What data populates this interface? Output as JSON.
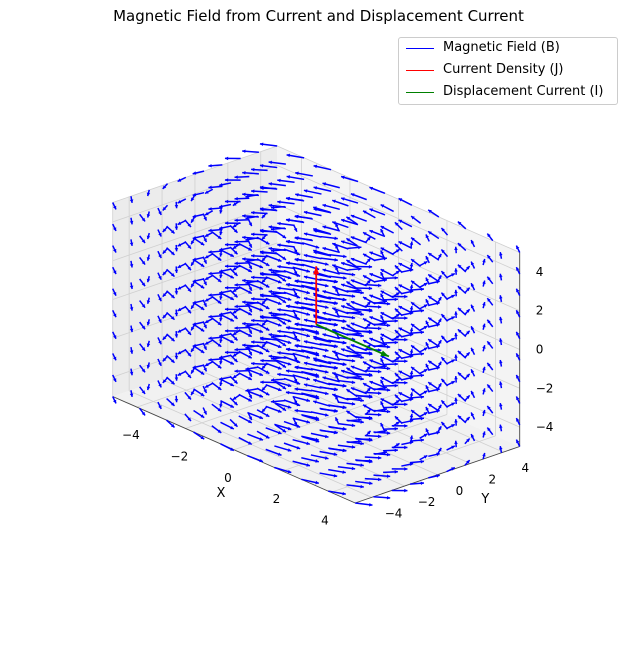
{
  "chart_data": {
    "type": "quiver3d",
    "title": "Magnetic Field from Current and Displacement Current",
    "xlabel": "X",
    "ylabel": "Y",
    "zlabel": "",
    "xlim": [
      -5,
      5
    ],
    "ylim": [
      -5,
      5
    ],
    "zlim": [
      -5,
      5
    ],
    "xticks": [
      -4,
      -2,
      0,
      2,
      4
    ],
    "yticks": [
      -4,
      -2,
      0,
      2,
      4
    ],
    "zticks": [
      -4,
      -2,
      0,
      2,
      4
    ],
    "xtick_labels": [
      "−4",
      "−2",
      "0",
      "2",
      "4"
    ],
    "ytick_labels": [
      "−4",
      "−2",
      "0",
      "2",
      "4"
    ],
    "ztick_labels": [
      "−4",
      "−2",
      "0",
      "2",
      "4"
    ],
    "grid": true,
    "legend_position": "top-right",
    "field_grid": {
      "start": -5,
      "stop": 5,
      "count": 10
    },
    "series": [
      {
        "name": "Magnetic Field (B)",
        "color": "#0000ff",
        "kind": "field",
        "direction": "azimuthal around z-axis"
      },
      {
        "name": "Current Density (J)",
        "color": "#ff0000",
        "kind": "vector",
        "origin": [
          0,
          0,
          0
        ],
        "vector": [
          0,
          0,
          3
        ]
      },
      {
        "name": "Displacement Current (I)",
        "color": "#008000",
        "kind": "vector",
        "origin": [
          0,
          0,
          0
        ],
        "vector": [
          3,
          0,
          0
        ]
      }
    ]
  }
}
